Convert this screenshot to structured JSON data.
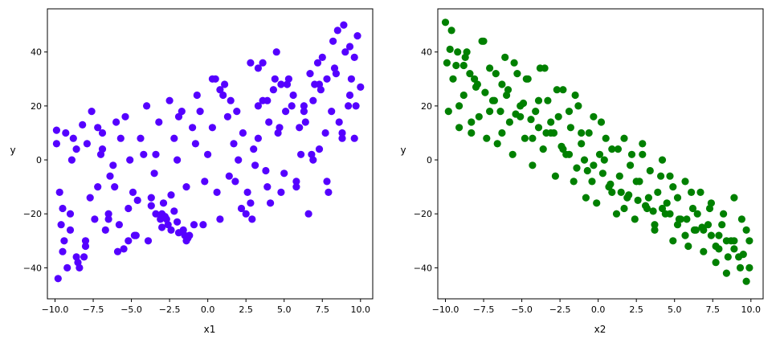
{
  "chart_data": [
    {
      "type": "scatter",
      "xlabel": "x1",
      "ylabel": "y",
      "xlim": [
        -10.5,
        10.8
      ],
      "ylim": [
        -51.5,
        56
      ],
      "xticks": [
        -10.0,
        -7.5,
        -5.0,
        -2.5,
        0.0,
        2.5,
        5.0,
        7.5,
        10.0
      ],
      "xtick_labels": [
        "−10.0",
        "−7.5",
        "−5.0",
        "−2.5",
        "0.0",
        "2.5",
        "5.0",
        "7.5",
        "10.0"
      ],
      "yticks": [
        -40,
        -20,
        0,
        20,
        40
      ],
      "ytick_labels": [
        "−40",
        "−20",
        "0",
        "20",
        "40"
      ],
      "grid": false,
      "marker_color": "#5500ff",
      "series": [
        {
          "x": [
            -9.9,
            -9.8,
            -9.5,
            -9.3,
            -9.0,
            -8.8,
            -8.5,
            -8.2,
            -8.0,
            -7.6,
            -7.2,
            -6.9,
            -6.5,
            -6.0,
            -5.5,
            -5.1,
            -4.6,
            -4.0,
            -3.5,
            -3.0,
            -2.5,
            -2.0,
            -1.5,
            -1.0,
            -0.5,
            0.0,
            0.6,
            1.1,
            1.7,
            2.2,
            2.8,
            3.3,
            3.9,
            4.4,
            5.0,
            5.6,
            6.1,
            6.6,
            7.2,
            7.7,
            8.2,
            8.6,
            9.0,
            9.4,
            9.8,
            10.0,
            9.6,
            9.2,
            8.8,
            8.4,
            7.9,
            7.4,
            6.9,
            6.3,
            5.8,
            5.2,
            4.7,
            4.1,
            3.6,
            3.0,
            2.5,
            1.9,
            1.4,
            0.8,
            0.3,
            -0.3,
            -0.8,
            -1.4,
            -1.9,
            -2.4,
            -2.9,
            -3.4,
            -3.9,
            -4.4,
            -4.9,
            -5.4,
            -5.9,
            -6.4,
            -6.9,
            -7.4,
            -7.9,
            -8.4,
            -8.9,
            -9.4,
            -9.7,
            -9.9,
            -9.5,
            -9.0,
            -8.6,
            -8.1,
            -7.7,
            -7.2,
            -6.7,
            -6.2,
            -5.7,
            -5.2,
            -4.7,
            -4.2,
            -3.7,
            -3.2,
            -2.7,
            -2.2,
            -1.7,
            -1.2,
            -0.7,
            -0.2,
            0.3,
            0.8,
            1.3,
            1.8,
            2.3,
            2.8,
            3.3,
            3.8,
            4.3,
            4.8,
            5.3,
            5.8,
            6.3,
            6.8,
            7.3,
            7.8,
            8.3,
            8.8,
            9.3,
            9.7,
            -3.1,
            -2.8,
            -3.4,
            -2.6,
            -3.7,
            -2.2,
            -1.9,
            -1.6,
            -1.3,
            -2.0,
            -3.0,
            -2.4,
            6.7,
            7.0,
            7.5,
            6.9,
            7.8,
            8.1,
            6.4,
            7.3,
            8.5,
            8.9,
            9.3,
            9.6,
            3.3,
            3.6,
            3.9,
            4.5,
            4.8,
            2.9,
            3.1,
            0.5,
            1.0,
            1.5,
            -6.5,
            -5.8,
            -5.2,
            -4.8,
            -7.0,
            -6.1,
            -8.0,
            -8.6,
            -9.2,
            -9.6,
            2.0,
            2.6,
            5.5,
            6.0,
            -0.9,
            -1.4,
            4.0,
            4.6,
            5.1
          ],
          "y": [
            11,
            -44,
            -34,
            10,
            -20,
            8,
            -38,
            13,
            -30,
            18,
            -10,
            4,
            -22,
            14,
            -33,
            0,
            -15,
            20,
            -5,
            -20,
            22,
            0,
            -28,
            12,
            18,
            2,
            -12,
            28,
            6,
            -18,
            36,
            8,
            -10,
            30,
            -5,
            24,
            2,
            -20,
            36,
            10,
            44,
            14,
            40,
            30,
            46,
            27,
            38,
            20,
            8,
            32,
            -12,
            26,
            0,
            18,
            -8,
            28,
            12,
            -16,
            22,
            4,
            -20,
            18,
            -6,
            26,
            12,
            -24,
            6,
            -10,
            16,
            -26,
            -16,
            2,
            -30,
            8,
            -12,
            16,
            -34,
            -6,
            10,
            -22,
            6,
            -40,
            0,
            -30,
            -12,
            6,
            -18,
            -26,
            4,
            -36,
            -14,
            12,
            -26,
            -2,
            8,
            -18,
            -28,
            2,
            -14,
            14,
            -22,
            8,
            18,
            -28,
            24,
            -8,
            30,
            -22,
            16,
            -8,
            10,
            -16,
            20,
            -4,
            26,
            -12,
            30,
            -10,
            20,
            2,
            28,
            -8,
            34,
            10,
            42,
            20,
            -22,
            -21,
            -20,
            -24,
            -17,
            -19,
            -27,
            -26,
            -29,
            -23,
            -25,
            -13,
            32,
            28,
            38,
            22,
            30,
            18,
            14,
            4,
            48,
            50,
            24,
            8,
            34,
            36,
            22,
            40,
            28,
            -22,
            -2,
            30,
            24,
            22,
            -20,
            -24,
            -30,
            -28,
            2,
            -10,
            -32,
            -36,
            -40,
            -24,
            0,
            -12,
            20,
            12,
            -24,
            -30,
            14,
            10,
            18
          ]
        }
      ]
    },
    {
      "type": "scatter",
      "xlabel": "x2",
      "ylabel": "y",
      "xlim": [
        -10.5,
        10.8
      ],
      "ylim": [
        -51.5,
        56
      ],
      "xticks": [
        -10.0,
        -7.5,
        -5.0,
        -2.5,
        0.0,
        2.5,
        5.0,
        7.5,
        10.0
      ],
      "xtick_labels": [
        "−10.0",
        "−7.5",
        "−5.0",
        "−2.5",
        "0.0",
        "2.5",
        "5.0",
        "7.5",
        "10.0"
      ],
      "yticks": [
        -40,
        -20,
        0,
        20,
        40
      ],
      "ytick_labels": [
        "−40",
        "−20",
        "0",
        "20",
        "40"
      ],
      "grid": false,
      "marker_color": "#008000",
      "series": [
        {
          "x": [
            -10.0,
            -9.8,
            -9.6,
            -9.3,
            -9.1,
            -8.8,
            -8.6,
            -8.3,
            -8.1,
            -7.8,
            -7.6,
            -7.3,
            -7.1,
            -6.8,
            -6.6,
            -6.3,
            -6.1,
            -5.8,
            -5.6,
            -5.3,
            -5.1,
            -4.8,
            -4.6,
            -4.3,
            -4.1,
            -3.8,
            -3.6,
            -3.3,
            -3.1,
            -2.8,
            -2.6,
            -2.3,
            -2.1,
            -1.8,
            -1.6,
            -1.3,
            -1.1,
            -0.8,
            -0.6,
            -0.3,
            -0.1,
            0.2,
            0.4,
            0.7,
            0.9,
            1.2,
            1.4,
            1.7,
            1.9,
            2.2,
            2.4,
            2.7,
            2.9,
            3.2,
            3.4,
            3.7,
            3.9,
            4.2,
            4.4,
            4.7,
            4.9,
            5.2,
            5.4,
            5.7,
            5.9,
            6.2,
            6.4,
            6.7,
            6.9,
            7.2,
            7.4,
            7.7,
            7.9,
            8.2,
            8.4,
            8.7,
            8.9,
            9.2,
            9.4,
            9.7,
            9.9,
            -9.9,
            -9.5,
            -9.1,
            -8.7,
            -8.3,
            -7.9,
            -7.5,
            -7.1,
            -6.7,
            -6.3,
            -5.9,
            -5.5,
            -5.1,
            -4.7,
            -4.3,
            -3.9,
            -3.5,
            -3.1,
            -2.7,
            -2.3,
            -1.9,
            -1.5,
            -1.1,
            -0.7,
            -0.3,
            0.1,
            0.5,
            0.9,
            1.3,
            1.7,
            2.1,
            2.5,
            2.9,
            3.3,
            3.7,
            4.1,
            4.5,
            4.9,
            5.3,
            5.7,
            6.1,
            6.5,
            6.9,
            7.3,
            7.7,
            8.1,
            8.5,
            8.9,
            9.3,
            9.7,
            -9.7,
            -9.2,
            -8.8,
            -8.4,
            -8.0,
            -7.4,
            -6.9,
            -6.4,
            -6.0,
            -5.4,
            -4.9,
            -4.4,
            -3.9,
            -3.4,
            -2.9,
            -2.4,
            -1.9,
            -1.4,
            -0.9,
            -0.4,
            0.3,
            0.8,
            1.5,
            2.0,
            2.6,
            3.1,
            3.6,
            4.2,
            4.7,
            5.2,
            5.8,
            6.3,
            6.8,
            7.4,
            7.9,
            8.4,
            8.9,
            9.5,
            9.9
          ],
          "y": [
            51,
            18,
            48,
            35,
            12,
            24,
            40,
            10,
            30,
            16,
            44,
            8,
            34,
            22,
            6,
            28,
            38,
            14,
            2,
            32,
            20,
            8,
            30,
            -2,
            18,
            34,
            4,
            22,
            10,
            -6,
            16,
            26,
            2,
            12,
            -8,
            20,
            6,
            -14,
            10,
            -2,
            -16,
            14,
            0,
            -10,
            4,
            -20,
            -6,
            8,
            -14,
            2,
            -22,
            -8,
            6,
            -18,
            -4,
            -26,
            -12,
            0,
            -20,
            -6,
            -30,
            -14,
            -22,
            -8,
            -32,
            -18,
            -26,
            -12,
            -34,
            -24,
            -16,
            -38,
            -28,
            -20,
            -42,
            -30,
            -14,
            -36,
            -22,
            -45,
            -30,
            36,
            30,
            20,
            38,
            14,
            28,
            44,
            18,
            32,
            10,
            26,
            36,
            16,
            30,
            8,
            22,
            34,
            14,
            26,
            4,
            18,
            24,
            10,
            -4,
            16,
            2,
            8,
            -12,
            4,
            -18,
            -2,
            -8,
            2,
            -14,
            -24,
            -6,
            -16,
            -10,
            -22,
            -28,
            -12,
            -20,
            -26,
            -18,
            -32,
            -24,
            -36,
            -30,
            -40,
            -26,
            41,
            40,
            35,
            32,
            27,
            25,
            22,
            18,
            24,
            17,
            21,
            15,
            12,
            10,
            10,
            5,
            2,
            -3,
            0,
            -8,
            -5,
            -9,
            -12,
            -13,
            -15,
            -17,
            -19,
            -18,
            -20,
            -24,
            -22,
            -26,
            -25,
            -28,
            -33,
            -30,
            -33,
            -35,
            -40
          ]
        }
      ]
    }
  ]
}
